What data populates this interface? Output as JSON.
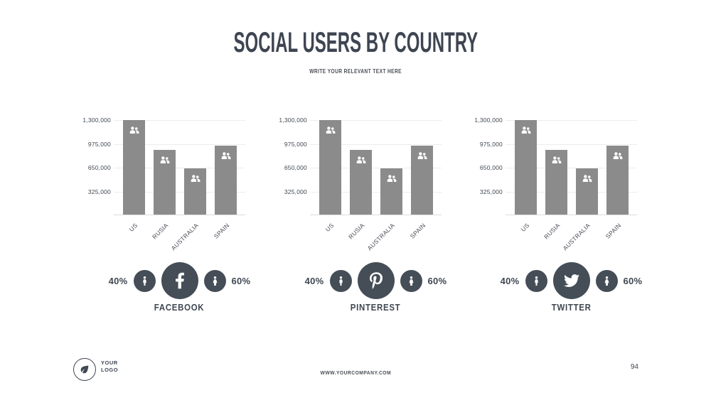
{
  "slide": {
    "title": "SOCIAL USERS BY COUNTRY",
    "subtitle": "WRITE YOUR RELEVANT TEXT HERE"
  },
  "chart_data": [
    {
      "type": "bar",
      "network": "FACEBOOK",
      "categories": [
        "US",
        "RUSIA",
        "AUSTRALIA",
        "SPAIN"
      ],
      "values": [
        1300000,
        890000,
        640000,
        950000
      ],
      "ylim": [
        0,
        1300000
      ],
      "ytick_values": [
        1300000,
        975000,
        650000,
        325000
      ],
      "ytick_labels": [
        "1,300,000",
        "975,000",
        "650,000",
        "325,000"
      ],
      "male_share": "40%",
      "female_share": "60%",
      "legend_position": "none",
      "grid": "horizontal"
    },
    {
      "type": "bar",
      "network": "PINTEREST",
      "categories": [
        "US",
        "RUSIA",
        "AUSTRALIA",
        "SPAIN"
      ],
      "values": [
        1300000,
        890000,
        640000,
        950000
      ],
      "ylim": [
        0,
        1300000
      ],
      "ytick_values": [
        1300000,
        975000,
        650000,
        325000
      ],
      "ytick_labels": [
        "1,300,000",
        "975,000",
        "650,000",
        "325,000"
      ],
      "male_share": "40%",
      "female_share": "60%",
      "legend_position": "none",
      "grid": "horizontal"
    },
    {
      "type": "bar",
      "network": "TWITTER",
      "categories": [
        "US",
        "RUSIA",
        "AUSTRALIA",
        "SPAIN"
      ],
      "values": [
        1300000,
        890000,
        640000,
        950000
      ],
      "ylim": [
        0,
        1300000
      ],
      "ytick_values": [
        1300000,
        975000,
        650000,
        325000
      ],
      "ytick_labels": [
        "1,300,000",
        "975,000",
        "650,000",
        "325,000"
      ],
      "male_share": "40%",
      "female_share": "60%",
      "legend_position": "none",
      "grid": "horizontal"
    }
  ],
  "footer": {
    "logo_line1": "YOUR",
    "logo_line2": "LOGO",
    "website": "WWW.YOURCOMPANY.COM",
    "page_number": "94"
  },
  "colors": {
    "bar": "#8b8b8b",
    "accent_dark": "#454d57",
    "title_text": "#3e4552",
    "grid": "#ececec"
  }
}
